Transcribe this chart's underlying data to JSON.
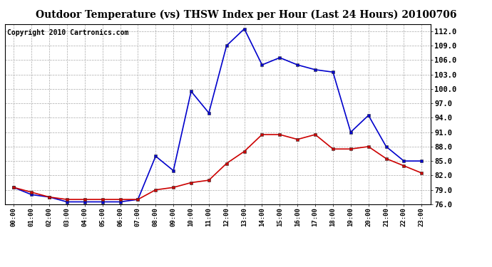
{
  "title": "Outdoor Temperature (vs) THSW Index per Hour (Last 24 Hours) 20100706",
  "copyright": "Copyright 2010 Cartronics.com",
  "hours": [
    "00:00",
    "01:00",
    "02:00",
    "03:00",
    "04:00",
    "05:00",
    "06:00",
    "07:00",
    "08:00",
    "09:00",
    "10:00",
    "11:00",
    "12:00",
    "13:00",
    "14:00",
    "15:00",
    "16:00",
    "17:00",
    "18:00",
    "19:00",
    "20:00",
    "21:00",
    "22:00",
    "23:00"
  ],
  "temp_red": [
    79.5,
    78.5,
    77.5,
    77.0,
    77.0,
    77.0,
    77.0,
    77.0,
    79.0,
    79.5,
    80.5,
    81.0,
    84.5,
    87.0,
    90.5,
    90.5,
    89.5,
    90.5,
    87.5,
    87.5,
    88.0,
    85.5,
    84.0,
    82.5
  ],
  "thsw_blue": [
    79.5,
    78.0,
    77.5,
    76.5,
    76.5,
    76.5,
    76.5,
    77.0,
    86.0,
    83.0,
    99.5,
    95.0,
    109.0,
    112.5,
    105.0,
    106.5,
    105.0,
    104.0,
    103.5,
    91.0,
    94.5,
    88.0,
    85.0,
    85.0
  ],
  "ylim": [
    76.0,
    113.5
  ],
  "yticks": [
    76.0,
    79.0,
    82.0,
    85.0,
    88.0,
    91.0,
    94.0,
    97.0,
    100.0,
    103.0,
    106.0,
    109.0,
    112.0
  ],
  "red_color": "#cc0000",
  "blue_color": "#0000cc",
  "grid_color": "#aaaaaa",
  "bg_color": "#ffffff",
  "title_fontsize": 10,
  "copyright_fontsize": 7
}
